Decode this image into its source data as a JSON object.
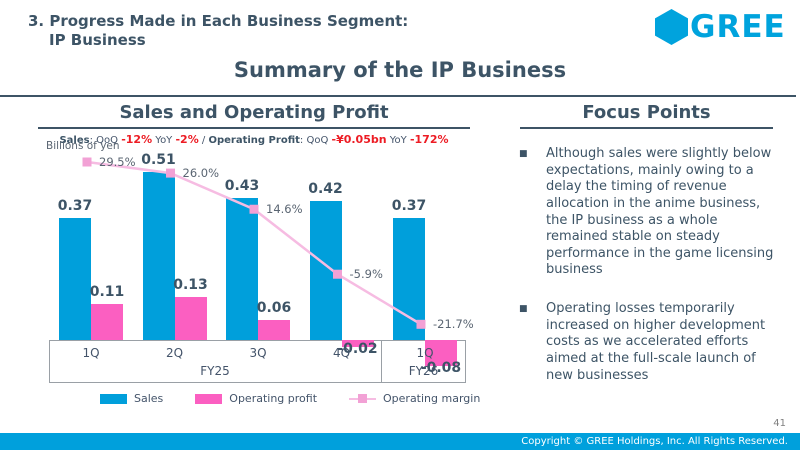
{
  "slide": {
    "header_line1": "3. Progress Made in Each Business Segment:",
    "header_line2": "IP Business",
    "logo_text": "GREE",
    "title": "Summary of the IP Business",
    "page_number": "41",
    "footer_text": "Copyright © GREE Holdings, Inc. All Rights Reserved."
  },
  "left_panel": {
    "heading": "Sales and Operating Profit",
    "unit_label": "Billions of yen",
    "kpi": {
      "sales_label": "Sales",
      "colon": ": ",
      "qoq_label": "QoQ ",
      "sales_qoq": "-12%",
      "yoy_label": " YoY ",
      "sales_yoy": "-2%",
      "separator": " / ",
      "op_label": "Operating Profit",
      "op_qoq": "-¥0.05bn",
      "op_yoy": "-172%"
    }
  },
  "focus_panel": {
    "heading": "Focus Points",
    "bullets": [
      "Although sales were slightly below expectations, mainly owing to a delay the timing of revenue allocation in the anime business, the IP business as a whole remained stable on steady performance in the game licensing business",
      "Operating losses temporarily increased on higher development costs as we accelerated efforts aimed at the full-scale launch of new businesses"
    ]
  },
  "chart_data": {
    "type": "bar",
    "subtype": "bar+line combo",
    "title": "Sales and Operating Profit",
    "unit": "Billions of yen",
    "categories": [
      "1Q",
      "2Q",
      "3Q",
      "4Q",
      "1Q"
    ],
    "fiscal_groups": [
      {
        "label": "FY25",
        "span": 4
      },
      {
        "label": "FY26",
        "span": 1
      }
    ],
    "series": [
      {
        "name": "Sales",
        "type": "bar",
        "color": "#009fdb",
        "values": [
          0.37,
          0.51,
          0.43,
          0.42,
          0.37
        ]
      },
      {
        "name": "Operating profit",
        "type": "bar",
        "color": "#fb5fc1",
        "values": [
          0.11,
          0.13,
          0.06,
          -0.02,
          -0.08
        ]
      },
      {
        "name": "Operating margin",
        "type": "line",
        "color": "#f6bce2",
        "marker_color": "#f2a1d5",
        "values_pct": [
          29.5,
          26.0,
          14.6,
          -5.9,
          -21.7
        ],
        "labels": [
          "29.5%",
          "26.0%",
          "14.6%",
          "-5.9%",
          "-21.7%"
        ]
      }
    ],
    "legend_position": "bottom",
    "colors": {
      "heading_text": "#3d5466",
      "negative_red": "#ed1c24",
      "brand_cyan": "#00a3dd",
      "footer_cyan": "#00a0dc"
    }
  }
}
